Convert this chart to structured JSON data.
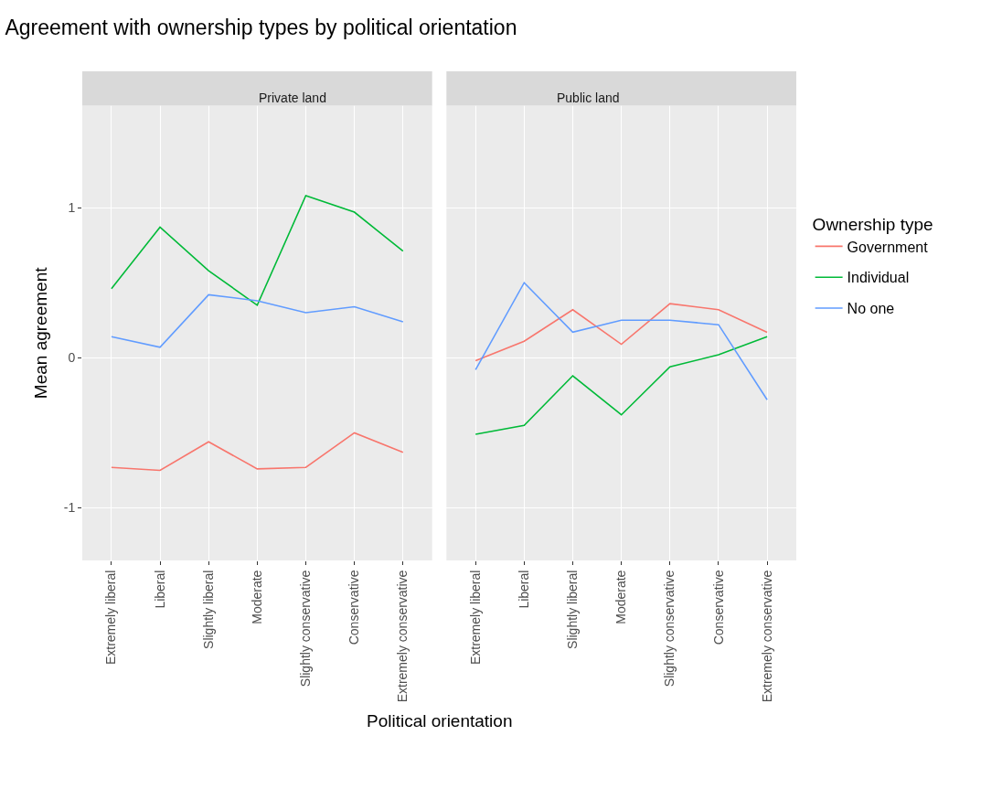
{
  "chart_data": [
    {
      "type": "line",
      "title": "Agreement with ownership types by political orientation",
      "subtitle": "Private land",
      "xlabel": "Political orientation",
      "ylabel": "Mean agreement",
      "legend_title": "Ownership type",
      "legend": "right",
      "grid": true,
      "categories": [
        "Extremely liberal",
        "Liberal",
        "Slightly liberal",
        "Moderate",
        "Slightly conservative",
        "Conservative",
        "Extremely conservative"
      ],
      "ylim": [
        -1.35,
        1.68
      ],
      "yticks": [
        -1,
        0,
        1
      ],
      "series": [
        {
          "name": "Government",
          "color": "#f8766d",
          "values": [
            -0.73,
            -0.75,
            -0.56,
            -0.74,
            -0.73,
            -0.5,
            -0.63
          ]
        },
        {
          "name": "Individual",
          "color": "#00ba38",
          "values": [
            0.46,
            0.87,
            0.58,
            0.35,
            1.08,
            0.97,
            0.71
          ]
        },
        {
          "name": "No one",
          "color": "#619cff",
          "values": [
            0.14,
            0.07,
            0.42,
            0.38,
            0.3,
            0.34,
            0.24
          ]
        }
      ]
    },
    {
      "type": "line",
      "subtitle": "Public land",
      "grid": true,
      "tick_labels": "x",
      "categories": [
        "Extremely liberal",
        "Liberal",
        "Slightly liberal",
        "Moderate",
        "Slightly conservative",
        "Conservative",
        "Extremely conservative"
      ],
      "ylim": [
        -1.35,
        1.68
      ],
      "yticks": [
        -1,
        0,
        1
      ],
      "series": [
        {
          "name": "Government",
          "color": "#f8766d",
          "values": [
            -0.02,
            0.11,
            0.32,
            0.09,
            0.36,
            0.32,
            0.17
          ]
        },
        {
          "name": "Individual",
          "color": "#00ba38",
          "values": [
            -0.51,
            -0.45,
            -0.12,
            -0.38,
            -0.06,
            0.02,
            0.14
          ]
        },
        {
          "name": "No one",
          "color": "#619cff",
          "values": [
            -0.08,
            0.5,
            0.17,
            0.25,
            0.25,
            0.22,
            -0.28
          ]
        }
      ]
    }
  ]
}
